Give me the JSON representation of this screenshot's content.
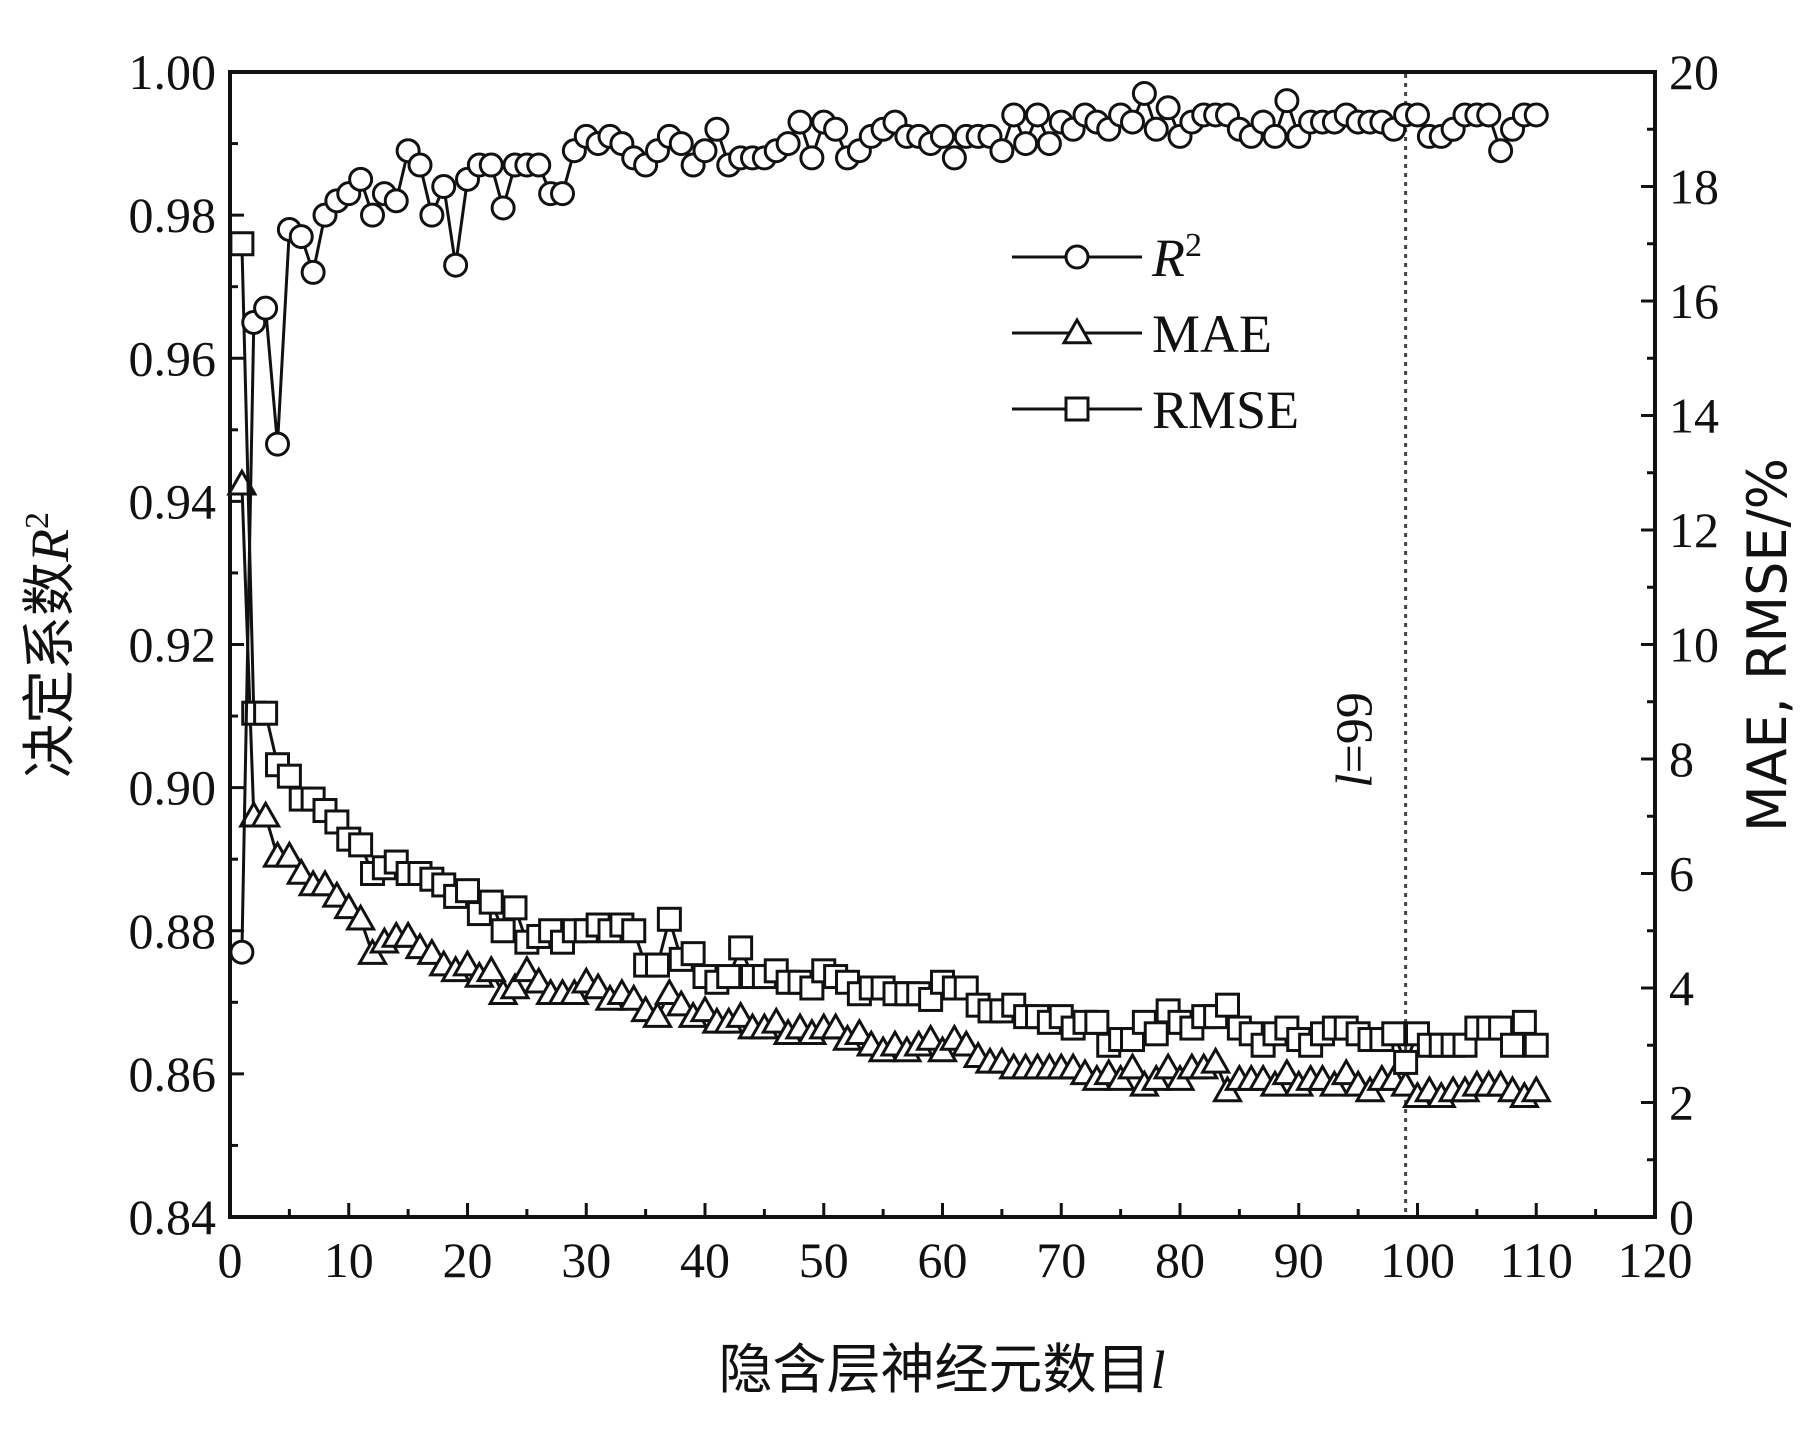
{
  "chart_data": {
    "type": "line",
    "title": "",
    "xlabel": "隐含层神经元数目",
    "xlabel_var": "l",
    "ylabel": "决定系数",
    "ylabel_var": "R",
    "ylabel_sup": "2",
    "y2label": "MAE, RMSE/%",
    "xlim": [
      0,
      120
    ],
    "ylim": [
      0.84,
      1.0
    ],
    "y2lim": [
      0,
      20
    ],
    "x_ticks": [
      "0",
      "10",
      "20",
      "30",
      "40",
      "50",
      "60",
      "70",
      "80",
      "90",
      "100",
      "110",
      "120"
    ],
    "y_ticks": [
      "0.84",
      "0.86",
      "0.88",
      "0.90",
      "0.92",
      "0.94",
      "0.96",
      "0.98",
      "1.00"
    ],
    "y2_ticks": [
      "0",
      "2",
      "4",
      "6",
      "8",
      "10",
      "12",
      "14",
      "16",
      "18",
      "20"
    ],
    "grid": false,
    "legend_position": "top-right",
    "legend": [
      {
        "label": "R",
        "sup": "2",
        "marker": "circle"
      },
      {
        "label": "MAE",
        "sup": "",
        "marker": "triangle"
      },
      {
        "label": "RMSE",
        "sup": "",
        "marker": "square"
      }
    ],
    "annotation": {
      "var": "l",
      "text": "=99",
      "x": 99
    },
    "series": [
      {
        "name": "R²",
        "axis": "left",
        "marker": "circle",
        "x": [
          1,
          2,
          3,
          4,
          5,
          6,
          7,
          8,
          9,
          10,
          11,
          12,
          13,
          14,
          15,
          16,
          17,
          18,
          19,
          20,
          21,
          22,
          23,
          24,
          25,
          26,
          27,
          28,
          29,
          30,
          31,
          32,
          33,
          34,
          35,
          36,
          37,
          38,
          39,
          40,
          41,
          42,
          43,
          44,
          45,
          46,
          47,
          48,
          49,
          50,
          51,
          52,
          53,
          54,
          55,
          56,
          57,
          58,
          59,
          60,
          61,
          62,
          63,
          64,
          65,
          66,
          67,
          68,
          69,
          70,
          71,
          72,
          73,
          74,
          75,
          76,
          77,
          78,
          79,
          80,
          81,
          82,
          83,
          84,
          85,
          86,
          87,
          88,
          89,
          90,
          91,
          92,
          93,
          94,
          95,
          96,
          97,
          98,
          99,
          100,
          101,
          102,
          103,
          104,
          105,
          106,
          107,
          108,
          109,
          110
        ],
        "values": [
          0.877,
          0.965,
          0.967,
          0.948,
          0.978,
          0.977,
          0.972,
          0.98,
          0.982,
          0.983,
          0.985,
          0.98,
          0.983,
          0.982,
          0.989,
          0.987,
          0.98,
          0.984,
          0.973,
          0.985,
          0.987,
          0.987,
          0.981,
          0.987,
          0.987,
          0.987,
          0.983,
          0.983,
          0.989,
          0.991,
          0.99,
          0.991,
          0.99,
          0.988,
          0.987,
          0.989,
          0.991,
          0.99,
          0.987,
          0.989,
          0.992,
          0.987,
          0.988,
          0.988,
          0.988,
          0.989,
          0.99,
          0.993,
          0.988,
          0.993,
          0.992,
          0.988,
          0.989,
          0.991,
          0.992,
          0.993,
          0.991,
          0.991,
          0.99,
          0.991,
          0.988,
          0.991,
          0.991,
          0.991,
          0.989,
          0.994,
          0.99,
          0.994,
          0.99,
          0.993,
          0.992,
          0.994,
          0.993,
          0.992,
          0.994,
          0.993,
          0.997,
          0.992,
          0.995,
          0.991,
          0.993,
          0.994,
          0.994,
          0.994,
          0.992,
          0.991,
          0.993,
          0.991,
          0.996,
          0.991,
          0.993,
          0.993,
          0.993,
          0.994,
          0.993,
          0.993,
          0.993,
          0.992,
          0.994,
          0.994,
          0.991,
          0.991,
          0.992,
          0.994,
          0.994,
          0.994,
          0.989,
          0.992,
          0.994,
          0.994
        ]
      },
      {
        "name": "MAE",
        "axis": "right",
        "marker": "triangle",
        "x": [
          1,
          2,
          3,
          4,
          5,
          6,
          7,
          8,
          9,
          10,
          11,
          12,
          13,
          14,
          15,
          16,
          17,
          18,
          19,
          20,
          21,
          22,
          23,
          24,
          25,
          26,
          27,
          28,
          29,
          30,
          31,
          32,
          33,
          34,
          35,
          36,
          37,
          38,
          39,
          40,
          41,
          42,
          43,
          44,
          45,
          46,
          47,
          48,
          49,
          50,
          51,
          52,
          53,
          54,
          55,
          56,
          57,
          58,
          59,
          60,
          61,
          62,
          63,
          64,
          65,
          66,
          67,
          68,
          69,
          70,
          71,
          72,
          73,
          74,
          75,
          76,
          77,
          78,
          79,
          80,
          81,
          82,
          83,
          84,
          85,
          86,
          87,
          88,
          89,
          90,
          91,
          92,
          93,
          94,
          95,
          96,
          97,
          98,
          99,
          100,
          101,
          102,
          103,
          104,
          105,
          106,
          107,
          108,
          109,
          110
        ],
        "values": [
          12.8,
          7.0,
          7.0,
          6.3,
          6.3,
          6.0,
          5.8,
          5.8,
          5.6,
          5.4,
          5.2,
          4.6,
          4.8,
          4.9,
          4.9,
          4.7,
          4.6,
          4.4,
          4.3,
          4.4,
          4.2,
          4.3,
          3.9,
          4.0,
          4.3,
          4.1,
          3.9,
          3.9,
          3.9,
          4.1,
          4.0,
          3.8,
          3.9,
          3.8,
          3.6,
          3.5,
          3.9,
          3.7,
          3.5,
          3.6,
          3.4,
          3.4,
          3.5,
          3.3,
          3.3,
          3.4,
          3.2,
          3.3,
          3.2,
          3.3,
          3.3,
          3.1,
          3.2,
          3.0,
          2.9,
          3.0,
          2.9,
          3.0,
          3.1,
          2.9,
          3.1,
          3.0,
          2.8,
          2.7,
          2.7,
          2.6,
          2.6,
          2.6,
          2.6,
          2.6,
          2.6,
          2.5,
          2.4,
          2.5,
          2.4,
          2.6,
          2.3,
          2.4,
          2.6,
          2.4,
          2.6,
          2.6,
          2.7,
          2.2,
          2.4,
          2.4,
          2.4,
          2.3,
          2.5,
          2.3,
          2.4,
          2.4,
          2.3,
          2.5,
          2.3,
          2.2,
          2.4,
          2.4,
          2.3,
          2.1,
          2.2,
          2.1,
          2.2,
          2.2,
          2.3,
          2.3,
          2.3,
          2.2,
          2.1,
          2.2
        ]
      },
      {
        "name": "RMSE",
        "axis": "right",
        "marker": "square",
        "x": [
          1,
          2,
          3,
          4,
          5,
          6,
          7,
          8,
          9,
          10,
          11,
          12,
          13,
          14,
          15,
          16,
          17,
          18,
          19,
          20,
          21,
          22,
          23,
          24,
          25,
          26,
          27,
          28,
          29,
          30,
          31,
          32,
          33,
          34,
          35,
          36,
          37,
          38,
          39,
          40,
          41,
          42,
          43,
          44,
          45,
          46,
          47,
          48,
          49,
          50,
          51,
          52,
          53,
          54,
          55,
          56,
          57,
          58,
          59,
          60,
          61,
          62,
          63,
          64,
          65,
          66,
          67,
          68,
          69,
          70,
          71,
          72,
          73,
          74,
          75,
          76,
          77,
          78,
          79,
          80,
          81,
          82,
          83,
          84,
          85,
          86,
          87,
          88,
          89,
          90,
          91,
          92,
          93,
          94,
          95,
          96,
          97,
          98,
          99,
          100,
          101,
          102,
          103,
          104,
          105,
          106,
          107,
          108,
          109,
          110
        ],
        "values": [
          17.0,
          8.8,
          8.8,
          7.9,
          7.7,
          7.3,
          7.3,
          7.1,
          6.9,
          6.6,
          6.5,
          6.0,
          6.1,
          6.2,
          6.0,
          6.0,
          5.9,
          5.8,
          5.6,
          5.7,
          5.3,
          5.5,
          5.0,
          5.4,
          4.8,
          4.9,
          5.0,
          4.8,
          5.0,
          5.0,
          5.1,
          5.0,
          5.1,
          5.0,
          4.4,
          4.4,
          5.2,
          4.5,
          4.6,
          4.2,
          4.1,
          4.2,
          4.7,
          4.2,
          4.2,
          4.3,
          4.1,
          4.1,
          4.0,
          4.3,
          4.2,
          4.1,
          3.9,
          4.0,
          4.0,
          3.9,
          3.9,
          3.9,
          3.8,
          4.1,
          4.0,
          4.0,
          3.7,
          3.6,
          3.6,
          3.7,
          3.5,
          3.5,
          3.4,
          3.5,
          3.3,
          3.4,
          3.4,
          3.0,
          3.1,
          3.1,
          3.4,
          3.2,
          3.6,
          3.4,
          3.3,
          3.5,
          3.5,
          3.7,
          3.3,
          3.2,
          3.0,
          3.2,
          3.3,
          3.1,
          3.0,
          3.2,
          3.3,
          3.3,
          3.2,
          3.1,
          3.1,
          3.2,
          2.7,
          3.2,
          3.0,
          3.0,
          3.0,
          3.0,
          3.3,
          3.3,
          3.3,
          3.0,
          3.4,
          3.0
        ]
      }
    ]
  }
}
